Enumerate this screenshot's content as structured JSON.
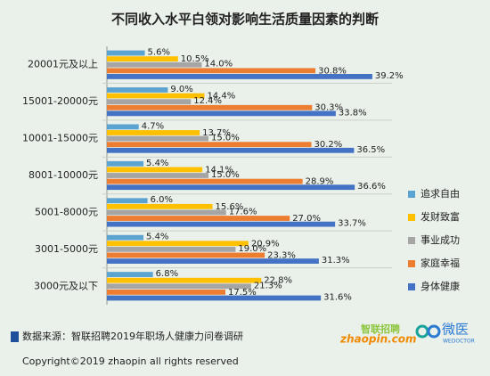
{
  "chart_data": {
    "type": "bar",
    "orientation": "horizontal",
    "title": "不同收入水平白领对影响生活质量因素的判断",
    "categories": [
      "20001元及以上",
      "15001-20000元",
      "10001-15000元",
      "8001-10000元",
      "5001-8000元",
      "3001-5000元",
      "3000元及以下"
    ],
    "series": [
      {
        "name": "追求自由",
        "color": "#5ba3d0",
        "values": [
          5.6,
          9.0,
          4.7,
          5.4,
          6.0,
          5.4,
          6.8
        ],
        "value_labels": [
          "5.6%",
          "9.0%",
          "4.7%",
          "5.4%",
          "6.0%",
          "5.4%",
          "6.8%"
        ]
      },
      {
        "name": "发财致富",
        "color": "#ffc000",
        "values": [
          10.5,
          14.4,
          13.7,
          14.1,
          15.6,
          20.9,
          22.8
        ],
        "value_labels": [
          "10.5%",
          "14.4%",
          "13.7%",
          "14.1%",
          "15.6%",
          "20.9%",
          "22.8%"
        ]
      },
      {
        "name": "事业成功",
        "color": "#a5a5a5",
        "values": [
          14.0,
          12.4,
          15.0,
          15.0,
          17.6,
          19.0,
          21.3
        ],
        "value_labels": [
          "14.0%",
          "12.4%",
          "15.0%",
          "15.0%",
          "17.6%",
          "19.0%",
          "21.3%"
        ]
      },
      {
        "name": "家庭幸福",
        "color": "#ed7d31",
        "values": [
          30.8,
          30.3,
          30.2,
          28.9,
          27.0,
          23.3,
          17.5
        ],
        "value_labels": [
          "30.8%",
          "30.3%",
          "30.2%",
          "28.9%",
          "27.0%",
          "23.3%",
          "17.5%"
        ]
      },
      {
        "name": "身体健康",
        "color": "#4472c4",
        "values": [
          39.2,
          33.8,
          36.5,
          36.6,
          33.7,
          31.3,
          31.6
        ],
        "value_labels": [
          "39.2%",
          "33.8%",
          "36.5%",
          "36.6%",
          "33.7%",
          "31.3%",
          "31.6%"
        ]
      }
    ]
  },
  "footer": {
    "source": "数据来源：智联招聘2019年职场人健康力问卷调研",
    "copyright": "Copyright©2019 zhaopin all rights reserved",
    "logo1_cn": "智联招聘",
    "logo1_en": "zhaopin.com",
    "logo2_cn": "微医",
    "logo2_en": "WEDOCTOR"
  }
}
